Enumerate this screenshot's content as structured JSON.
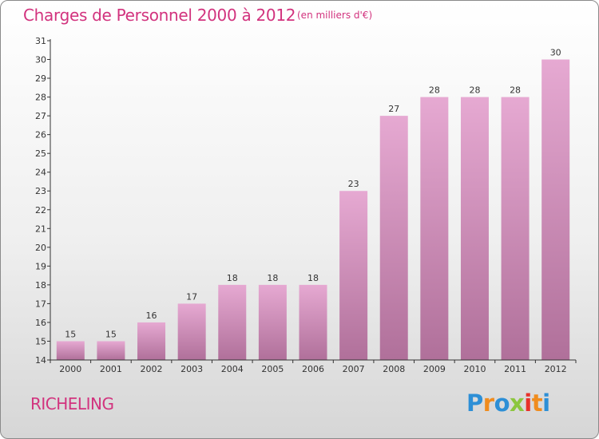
{
  "title": "Charges de Personnel 2000 à 2012",
  "subtitle": "(en milliers d'€)",
  "place": "RICHELING",
  "logo": {
    "text": "Proxiti",
    "colors": [
      "#2d8fd6",
      "#f08c1e",
      "#2d8fd6",
      "#8cc63f",
      "#e8312a",
      "#f08c1e",
      "#2d8fd6"
    ]
  },
  "colors": {
    "title": "#d2337e",
    "bar_top": "#e6a9d2",
    "bar_bottom": "#b0709a",
    "axis": "#333333"
  },
  "chart_data": {
    "type": "bar",
    "categories": [
      "2000",
      "2001",
      "2002",
      "2003",
      "2004",
      "2005",
      "2006",
      "2007",
      "2008",
      "2009",
      "2010",
      "2011",
      "2012"
    ],
    "values": [
      15,
      15,
      16,
      17,
      18,
      18,
      18,
      23,
      27,
      28,
      28,
      28,
      30
    ],
    "ylim": [
      14,
      31
    ],
    "yticks": [
      14,
      15,
      16,
      17,
      18,
      19,
      20,
      21,
      22,
      23,
      24,
      25,
      26,
      27,
      28,
      29,
      30,
      31
    ],
    "title": "Charges de Personnel 2000 à 2012",
    "xlabel": "",
    "ylabel": "",
    "grid": false,
    "data_labels": true
  }
}
